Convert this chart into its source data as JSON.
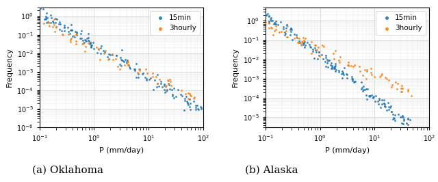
{
  "title_a": "(a) Oklahoma",
  "title_b": "(b) Alaska",
  "xlabel": "P (mm/day)",
  "ylabel": "Frequency",
  "legend_15min": "15min",
  "legend_3hourly": "3hourly",
  "color_15min": "#1f77b4",
  "color_3hourly": "#ff7f0e",
  "marker_size": 2.0,
  "alpha": 0.9,
  "ok_xlim": [
    0.1,
    100
  ],
  "ok_ylim": [
    1e-06,
    3.0
  ],
  "ak_xlim": [
    0.1,
    100
  ],
  "ak_ylim": [
    3e-06,
    5.0
  ]
}
